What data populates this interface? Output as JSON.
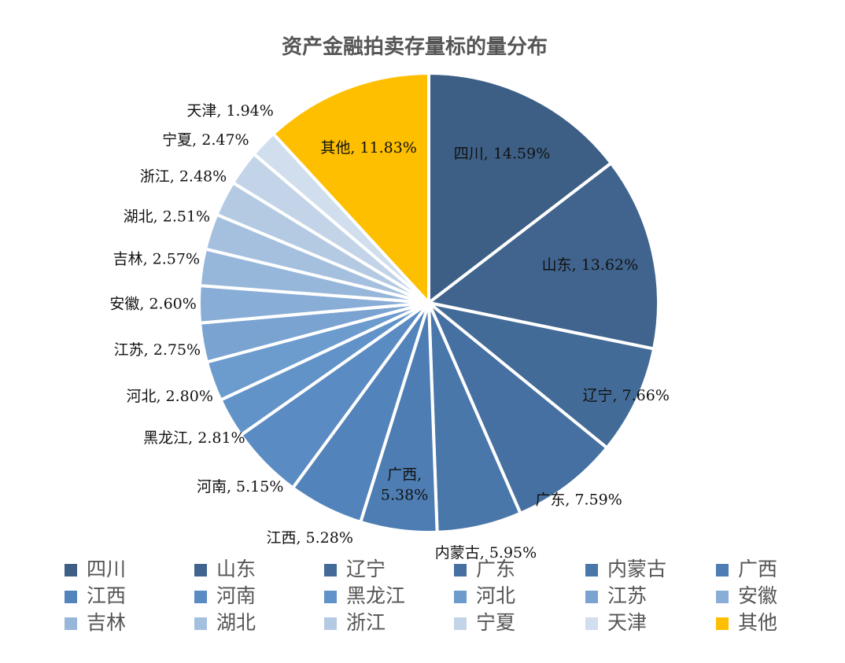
{
  "chart_data": {
    "type": "pie",
    "title": "资产金融拍卖存量标的量分布",
    "legend_position": "bottom",
    "slices": [
      {
        "label": "四川",
        "value": 14.59,
        "display": "14.59%",
        "color": "#3d5f85"
      },
      {
        "label": "山东",
        "value": 13.62,
        "display": "13.62%",
        "color": "#40648e"
      },
      {
        "label": "辽宁",
        "value": 7.66,
        "display": "7.66%",
        "color": "#436b97"
      },
      {
        "label": "广东",
        "value": 7.59,
        "display": "7.59%",
        "color": "#4670a1"
      },
      {
        "label": "内蒙古",
        "value": 5.95,
        "display": "5.95%",
        "color": "#4a77aa"
      },
      {
        "label": "广西",
        "value": 5.38,
        "display": "5.38%",
        "color": "#4d7db3"
      },
      {
        "label": "江西",
        "value": 5.28,
        "display": "5.28%",
        "color": "#5283ba"
      },
      {
        "label": "河南",
        "value": 5.15,
        "display": "5.15%",
        "color": "#5a8bc2"
      },
      {
        "label": "黑龙江",
        "value": 2.81,
        "display": "2.81%",
        "color": "#6293c8"
      },
      {
        "label": "河北",
        "value": 2.8,
        "display": "2.80%",
        "color": "#6c9bcd"
      },
      {
        "label": "江苏",
        "value": 2.75,
        "display": "2.75%",
        "color": "#7aa3d1"
      },
      {
        "label": "安徽",
        "value": 2.6,
        "display": "2.60%",
        "color": "#88add6"
      },
      {
        "label": "吉林",
        "value": 2.57,
        "display": "2.57%",
        "color": "#97b7da"
      },
      {
        "label": "湖北",
        "value": 2.51,
        "display": "2.51%",
        "color": "#a5c0df"
      },
      {
        "label": "浙江",
        "value": 2.48,
        "display": "2.48%",
        "color": "#b4cae3"
      },
      {
        "label": "宁夏",
        "value": 2.47,
        "display": "2.47%",
        "color": "#c3d4e8"
      },
      {
        "label": "天津",
        "value": 1.94,
        "display": "1.94%",
        "color": "#d0deed"
      },
      {
        "label": "其他",
        "value": 11.83,
        "display": "11.83%",
        "color": "#fdbf00"
      }
    ]
  }
}
